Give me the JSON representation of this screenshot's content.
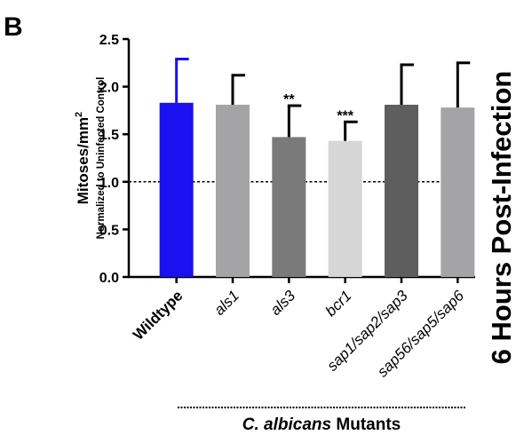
{
  "panel_label": "B",
  "chart_data": {
    "type": "bar",
    "categories": [
      "Wildtype",
      "als1",
      "als3",
      "bcr1",
      "sap1/sap2/sap3",
      "sap56/sap5/sap6"
    ],
    "values": [
      1.83,
      1.81,
      1.47,
      1.43,
      1.81,
      1.78
    ],
    "error_upper": [
      2.29,
      2.12,
      1.8,
      1.63,
      2.23,
      2.25
    ],
    "significance": [
      "",
      "",
      "**",
      "***",
      "",
      ""
    ],
    "bar_colors": [
      "#1a10f0",
      "#a4a4a6",
      "#7a7a7b",
      "#d6d6d6",
      "#5e5e5f",
      "#a4a4a6"
    ],
    "ylabel": "Mitoses/mm",
    "ylabel_superscript": "2",
    "ylabel_sub": "Normalized to Uninfected Control",
    "ylim": [
      0,
      2.5
    ],
    "yticks": [
      "0.0",
      "0.5",
      "1.0",
      "1.5",
      "2.0",
      "2.5"
    ],
    "reference_line": 1.0,
    "side_title": "6 Hours Post-Infection",
    "group_label_italic": "C. albicans",
    "group_label_rest": " Mutants",
    "grid": false
  }
}
